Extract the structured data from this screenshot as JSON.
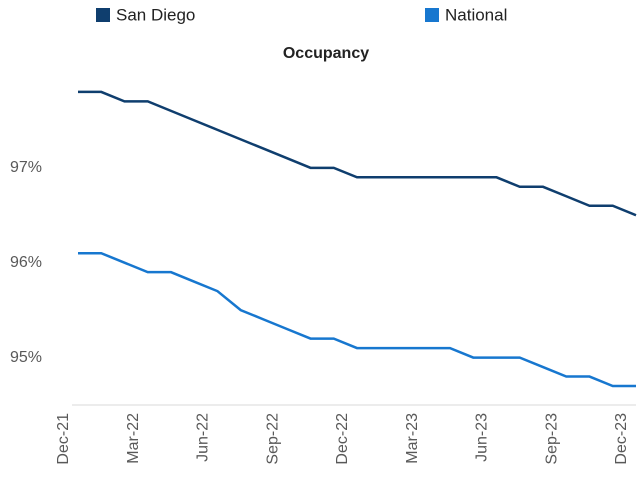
{
  "chart_data": {
    "type": "line",
    "title": "Occupancy",
    "categories": [
      "Dec-21",
      null,
      null,
      "Mar-22",
      null,
      null,
      "Jun-22",
      null,
      null,
      "Sep-22",
      null,
      null,
      "Dec-22",
      null,
      null,
      "Mar-23",
      null,
      null,
      "Jun-23",
      null,
      null,
      "Sep-23",
      null,
      null,
      "Dec-23"
    ],
    "series": [
      {
        "name": "San Diego",
        "color": "#0f3e6e",
        "values": [
          97.8,
          97.8,
          97.7,
          97.7,
          97.6,
          97.5,
          97.4,
          97.3,
          97.2,
          97.1,
          97.0,
          97.0,
          96.9,
          96.9,
          96.9,
          96.9,
          96.9,
          96.9,
          96.9,
          96.8,
          96.8,
          96.7,
          96.6,
          96.6,
          96.5
        ]
      },
      {
        "name": "National",
        "color": "#1777cf",
        "values": [
          96.1,
          96.1,
          96.0,
          95.9,
          95.9,
          95.8,
          95.7,
          95.5,
          95.4,
          95.3,
          95.2,
          95.2,
          95.1,
          95.1,
          95.1,
          95.1,
          95.1,
          95.0,
          95.0,
          95.0,
          94.9,
          94.8,
          94.8,
          94.7,
          94.7
        ]
      }
    ],
    "ylim": [
      94.5,
      98.5
    ],
    "yticks": [
      {
        "value": 95,
        "label": "95%"
      },
      {
        "value": 96,
        "label": "96%"
      },
      {
        "value": 97,
        "label": "97%"
      }
    ],
    "grid": false,
    "legend": "top"
  }
}
